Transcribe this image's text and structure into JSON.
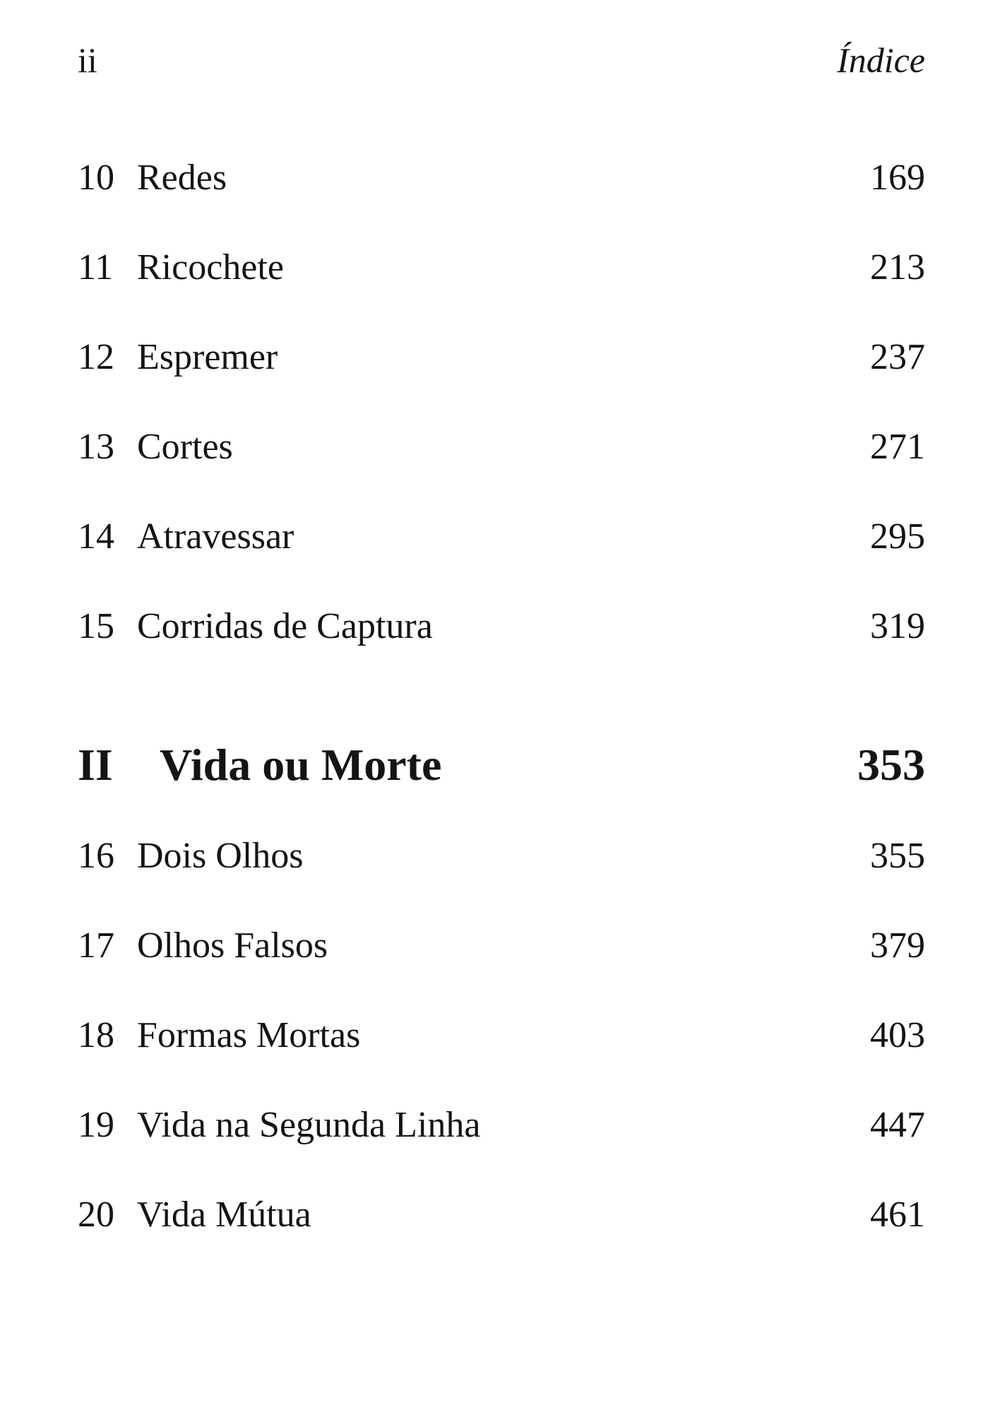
{
  "header": {
    "page_number": "ii",
    "section_title": "Índice"
  },
  "entries_part1": [
    {
      "number": "10",
      "title": "Redes",
      "page": "169"
    },
    {
      "number": "11",
      "title": "Ricochete",
      "page": "213"
    },
    {
      "number": "12",
      "title": "Espremer",
      "page": "237"
    },
    {
      "number": "13",
      "title": "Cortes",
      "page": "271"
    },
    {
      "number": "14",
      "title": "Atravessar",
      "page": "295"
    },
    {
      "number": "15",
      "title": "Corridas de Captura",
      "page": "319"
    }
  ],
  "part": {
    "number": "II",
    "title": "Vida ou Morte",
    "page": "353"
  },
  "entries_part2": [
    {
      "number": "16",
      "title": "Dois Olhos",
      "page": "355"
    },
    {
      "number": "17",
      "title": "Olhos Falsos",
      "page": "379"
    },
    {
      "number": "18",
      "title": "Formas Mortas",
      "page": "403"
    },
    {
      "number": "19",
      "title": "Vida na Segunda Linha",
      "page": "447"
    },
    {
      "number": "20",
      "title": "Vida Mútua",
      "page": "461"
    }
  ]
}
